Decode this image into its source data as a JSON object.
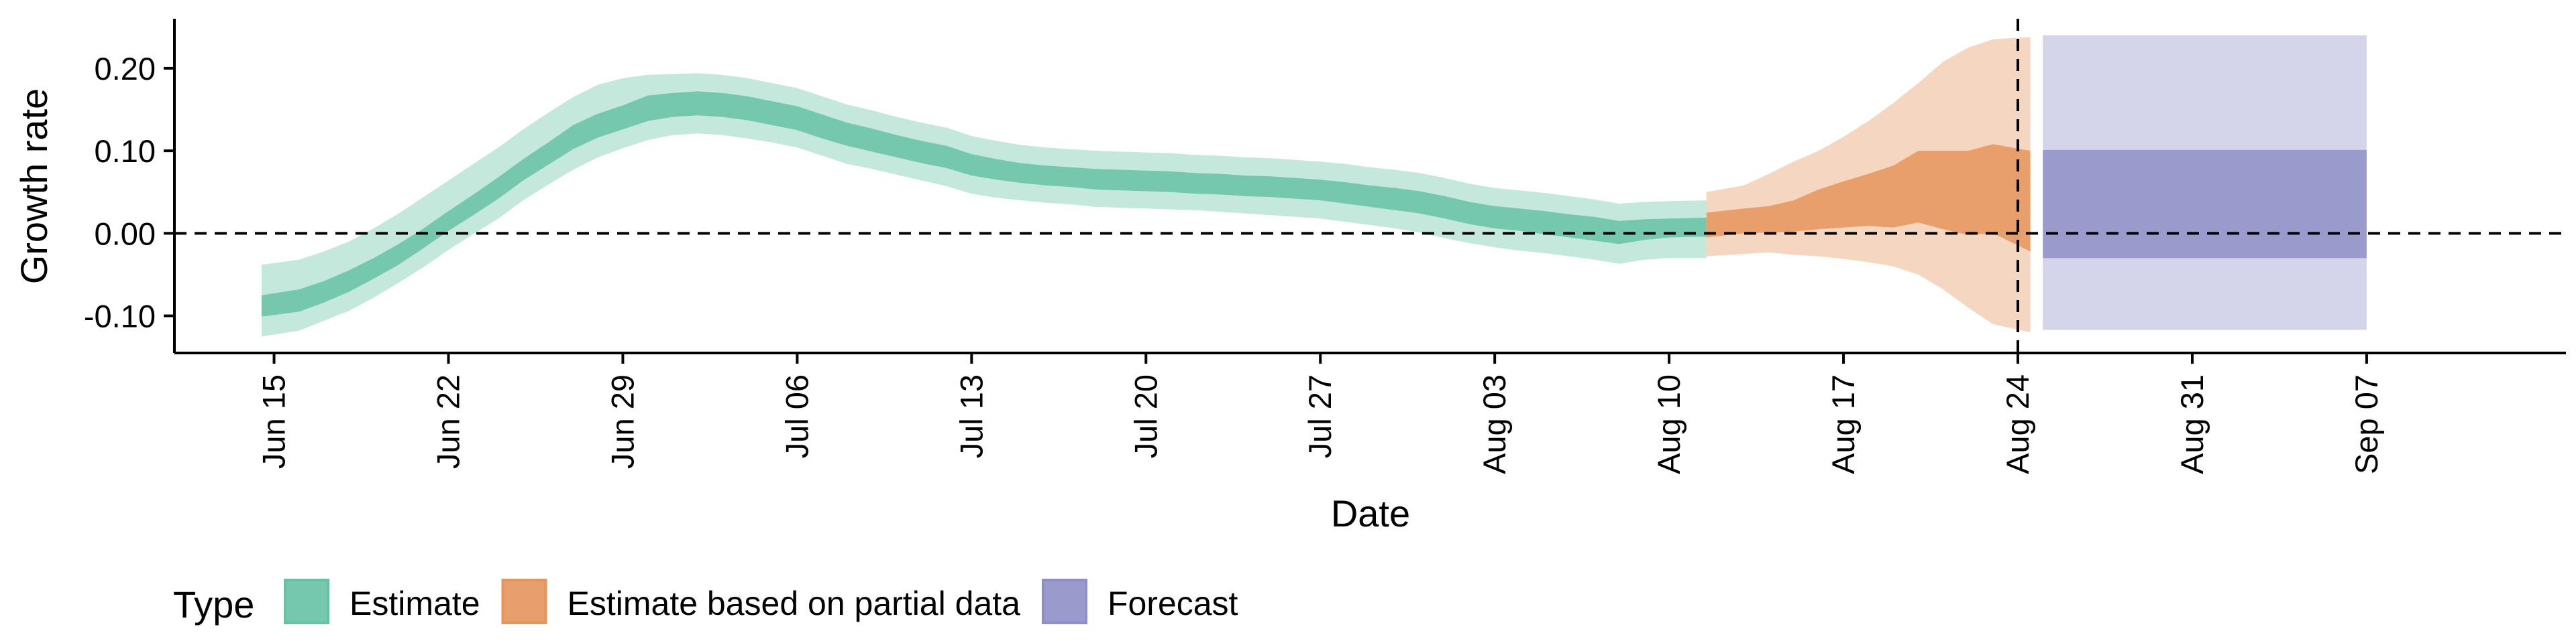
{
  "chart_data": {
    "type": "area",
    "title": "",
    "xlabel": "Date",
    "ylabel": "Growth rate",
    "ylim": [
      -0.145,
      0.26
    ],
    "yticks": [
      -0.1,
      0.0,
      0.1,
      0.2
    ],
    "ytick_labels": [
      "-0.10",
      "0.00",
      "0.10",
      "0.20"
    ],
    "xlim": [
      "2020-06-11",
      "2020-09-15"
    ],
    "xticks": [
      "2020-06-15",
      "2020-06-22",
      "2020-06-29",
      "2020-07-06",
      "2020-07-13",
      "2020-07-20",
      "2020-07-27",
      "2020-08-03",
      "2020-08-10",
      "2020-08-17",
      "2020-08-24",
      "2020-08-31",
      "2020-09-07"
    ],
    "xtick_labels": [
      "Jun 15",
      "Jun 22",
      "Jun 29",
      "Jul 06",
      "Jul 13",
      "Jul 20",
      "Jul 27",
      "Aug 03",
      "Aug 10",
      "Aug 17",
      "Aug 24",
      "Aug 31",
      "Sep 07"
    ],
    "hline": 0.0,
    "vline": "2020-08-24",
    "grid": false,
    "legend": {
      "title": "Type",
      "position": "bottom"
    },
    "series": [
      {
        "name": "Estimate",
        "color": "#66c2a5",
        "dates": [
          "2020-06-15",
          "2020-06-16",
          "2020-06-17",
          "2020-06-18",
          "2020-06-19",
          "2020-06-20",
          "2020-06-21",
          "2020-06-22",
          "2020-06-23",
          "2020-06-24",
          "2020-06-25",
          "2020-06-26",
          "2020-06-27",
          "2020-06-28",
          "2020-06-29",
          "2020-06-30",
          "2020-07-01",
          "2020-07-02",
          "2020-07-03",
          "2020-07-04",
          "2020-07-05",
          "2020-07-06",
          "2020-07-07",
          "2020-07-08",
          "2020-07-09",
          "2020-07-10",
          "2020-07-11",
          "2020-07-12",
          "2020-07-13",
          "2020-07-14",
          "2020-07-15",
          "2020-07-16",
          "2020-07-17",
          "2020-07-18",
          "2020-07-19",
          "2020-07-20",
          "2020-07-21",
          "2020-07-22",
          "2020-07-23",
          "2020-07-24",
          "2020-07-25",
          "2020-07-26",
          "2020-07-27",
          "2020-07-28",
          "2020-07-29",
          "2020-07-30",
          "2020-07-31",
          "2020-08-01",
          "2020-08-02",
          "2020-08-03",
          "2020-08-04",
          "2020-08-05",
          "2020-08-06",
          "2020-08-07",
          "2020-08-08",
          "2020-08-09",
          "2020-08-10",
          "2020-08-11"
        ],
        "median": [
          -0.088,
          -0.082,
          -0.071,
          -0.058,
          -0.042,
          -0.025,
          -0.006,
          0.015,
          0.034,
          0.055,
          0.077,
          0.097,
          0.117,
          0.131,
          0.141,
          0.153,
          0.156,
          0.158,
          0.156,
          0.152,
          0.146,
          0.14,
          0.13,
          0.12,
          0.113,
          0.105,
          0.098,
          0.093,
          0.083,
          0.077,
          0.073,
          0.07,
          0.068,
          0.065,
          0.064,
          0.063,
          0.062,
          0.06,
          0.06,
          0.058,
          0.057,
          0.055,
          0.053,
          0.05,
          0.046,
          0.042,
          0.038,
          0.032,
          0.025,
          0.02,
          0.017,
          0.014,
          0.01,
          0.006,
          0.001,
          0.004,
          0.006,
          0.007
        ],
        "lower_50": [
          -0.101,
          -0.095,
          -0.084,
          -0.071,
          -0.055,
          -0.038,
          -0.018,
          0.003,
          0.022,
          0.042,
          0.064,
          0.083,
          0.102,
          0.116,
          0.126,
          0.136,
          0.141,
          0.143,
          0.141,
          0.137,
          0.131,
          0.125,
          0.115,
          0.106,
          0.099,
          0.092,
          0.085,
          0.079,
          0.07,
          0.065,
          0.061,
          0.058,
          0.056,
          0.053,
          0.052,
          0.051,
          0.05,
          0.048,
          0.047,
          0.045,
          0.044,
          0.042,
          0.04,
          0.036,
          0.032,
          0.028,
          0.024,
          0.018,
          0.011,
          0.006,
          0.003,
          -0.001,
          -0.005,
          -0.009,
          -0.013,
          -0.008,
          -0.005,
          -0.004
        ],
        "upper_50": [
          -0.075,
          -0.068,
          -0.058,
          -0.045,
          -0.03,
          -0.013,
          0.006,
          0.027,
          0.047,
          0.068,
          0.09,
          0.11,
          0.131,
          0.145,
          0.155,
          0.167,
          0.17,
          0.172,
          0.17,
          0.166,
          0.16,
          0.154,
          0.144,
          0.134,
          0.127,
          0.119,
          0.112,
          0.106,
          0.096,
          0.09,
          0.085,
          0.082,
          0.08,
          0.078,
          0.077,
          0.076,
          0.075,
          0.073,
          0.072,
          0.07,
          0.069,
          0.067,
          0.065,
          0.062,
          0.058,
          0.055,
          0.051,
          0.045,
          0.038,
          0.033,
          0.03,
          0.027,
          0.023,
          0.02,
          0.015,
          0.017,
          0.018,
          0.019
        ],
        "lower_90": [
          -0.125,
          -0.118,
          -0.106,
          -0.094,
          -0.078,
          -0.06,
          -0.041,
          -0.02,
          -0.001,
          0.018,
          0.04,
          0.059,
          0.077,
          0.092,
          0.103,
          0.113,
          0.119,
          0.121,
          0.119,
          0.115,
          0.11,
          0.104,
          0.094,
          0.084,
          0.078,
          0.071,
          0.064,
          0.057,
          0.048,
          0.043,
          0.04,
          0.037,
          0.035,
          0.032,
          0.031,
          0.03,
          0.029,
          0.028,
          0.026,
          0.024,
          0.022,
          0.02,
          0.018,
          0.014,
          0.01,
          0.006,
          0.001,
          -0.006,
          -0.012,
          -0.017,
          -0.021,
          -0.024,
          -0.028,
          -0.032,
          -0.037,
          -0.032,
          -0.03,
          -0.03
        ],
        "upper_90": [
          -0.038,
          -0.032,
          -0.022,
          -0.01,
          0.006,
          0.024,
          0.044,
          0.064,
          0.084,
          0.104,
          0.126,
          0.146,
          0.165,
          0.18,
          0.188,
          0.192,
          0.193,
          0.194,
          0.192,
          0.188,
          0.182,
          0.176,
          0.166,
          0.156,
          0.149,
          0.141,
          0.134,
          0.128,
          0.118,
          0.112,
          0.107,
          0.104,
          0.102,
          0.1,
          0.099,
          0.098,
          0.097,
          0.095,
          0.094,
          0.092,
          0.091,
          0.089,
          0.087,
          0.084,
          0.08,
          0.077,
          0.073,
          0.067,
          0.06,
          0.055,
          0.052,
          0.049,
          0.045,
          0.041,
          0.036,
          0.038,
          0.039,
          0.04
        ]
      },
      {
        "name": "Estimate based on partial data",
        "color": "#e6955d",
        "dates": [
          "2020-08-12",
          "2020-08-13",
          "2020-08-14",
          "2020-08-15",
          "2020-08-16",
          "2020-08-17",
          "2020-08-18",
          "2020-08-19",
          "2020-08-20",
          "2020-08-21",
          "2020-08-22",
          "2020-08-23",
          "2020-08-24"
        ],
        "median": [
          0.01,
          0.015,
          0.017,
          0.019,
          0.025,
          0.03,
          0.034,
          0.037,
          0.05,
          0.047,
          0.045,
          0.05,
          0.04
        ],
        "lower_50": [
          -0.005,
          0.0,
          0.001,
          0.002,
          0.005,
          0.007,
          0.009,
          0.007,
          0.013,
          0.005,
          -0.002,
          0.0,
          -0.022
        ],
        "upper_50": [
          0.025,
          0.03,
          0.033,
          0.04,
          0.053,
          0.063,
          0.072,
          0.082,
          0.1,
          0.1,
          0.1,
          0.108,
          0.1
        ],
        "lower_90": [
          -0.028,
          -0.025,
          -0.023,
          -0.026,
          -0.028,
          -0.031,
          -0.035,
          -0.04,
          -0.05,
          -0.068,
          -0.09,
          -0.11,
          -0.12
        ],
        "upper_90": [
          0.05,
          0.058,
          0.072,
          0.087,
          0.1,
          0.117,
          0.136,
          0.158,
          0.182,
          0.208,
          0.225,
          0.235,
          0.238
        ]
      },
      {
        "name": "Forecast",
        "color": "#8f8fc7",
        "dates": [
          "2020-08-25",
          "2020-09-07"
        ],
        "lower_50": [
          -0.03,
          -0.03
        ],
        "upper_50": [
          0.101,
          0.101
        ],
        "lower_90": [
          -0.117,
          -0.117
        ],
        "upper_90": [
          0.24,
          0.24
        ]
      }
    ]
  }
}
